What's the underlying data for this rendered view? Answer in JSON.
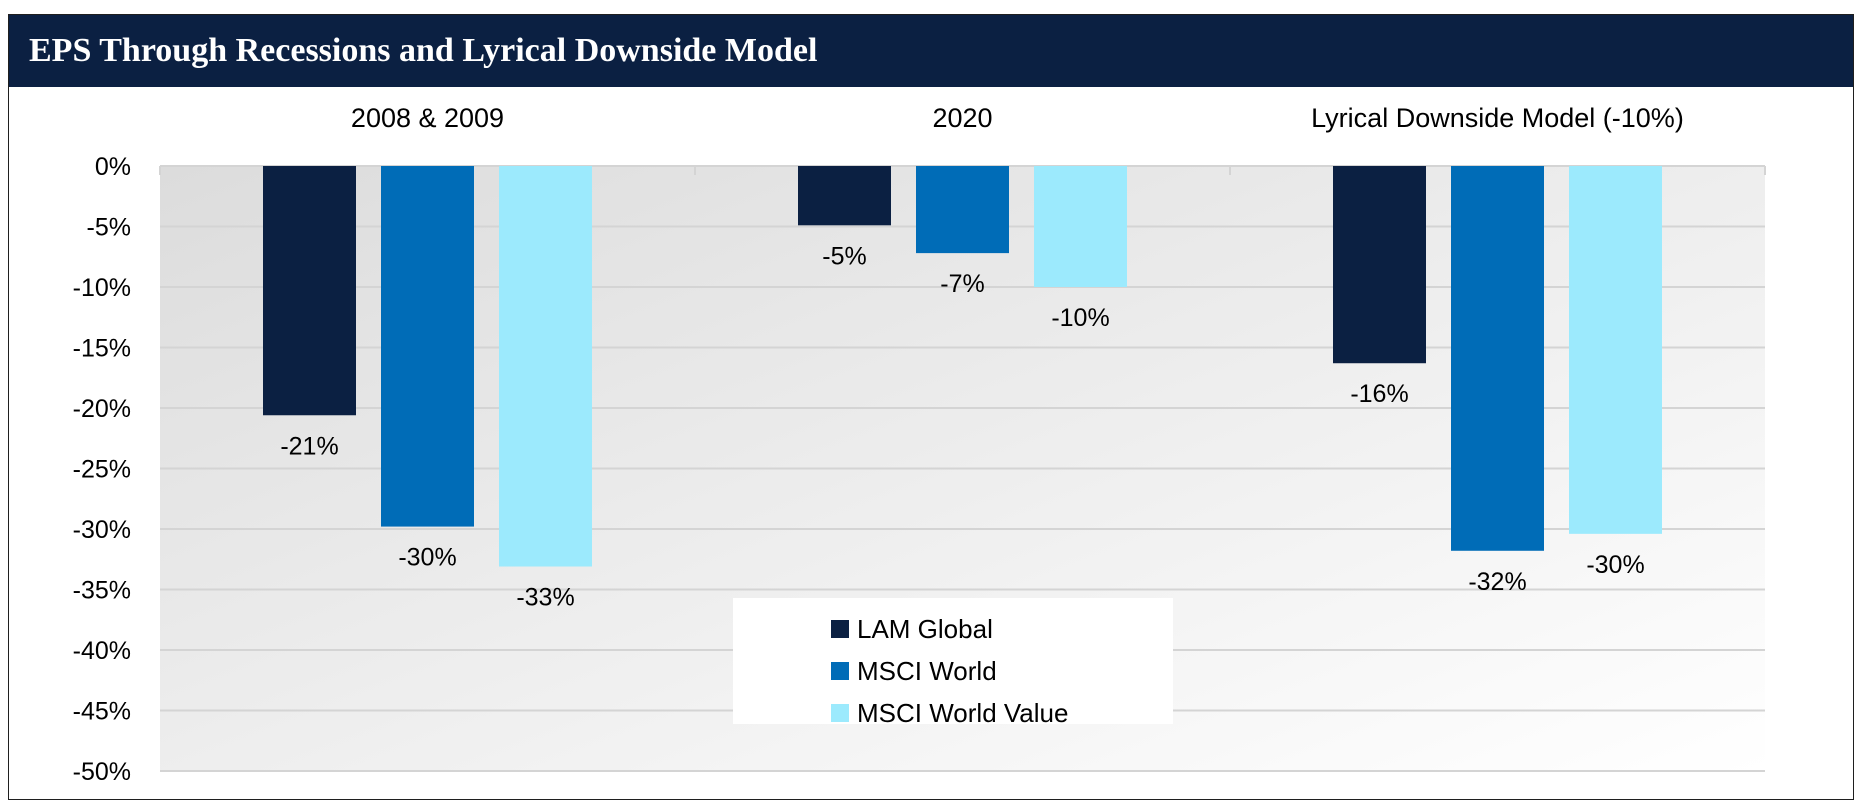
{
  "chart_data": {
    "type": "bar",
    "title": "EPS Through Recessions and Lyrical Downside Model",
    "categories": [
      "2008 & 2009",
      "2020",
      "Lyrical Downside Model (-10%)"
    ],
    "series": [
      {
        "name": "LAM Global",
        "color": "#0b2042",
        "values": [
          -20.6,
          -4.9,
          -16.3
        ],
        "labels": [
          "-21%",
          "-5%",
          "-16%"
        ]
      },
      {
        "name": "MSCI World",
        "color": "#006cb7",
        "values": [
          -29.8,
          -7.2,
          -31.8
        ],
        "labels": [
          "-30%",
          "-7%",
          "-32%"
        ]
      },
      {
        "name": "MSCI World Value",
        "color": "#9ceafd",
        "values": [
          -33.1,
          -10.0,
          -30.4
        ],
        "labels": [
          "-33%",
          "-10%",
          "-30%"
        ]
      }
    ],
    "ylim": [
      -50,
      0
    ],
    "ytick_step": 5,
    "ytick_labels": [
      "0%",
      "-5%",
      "-10%",
      "-15%",
      "-20%",
      "-25%",
      "-30%",
      "-35%",
      "-40%",
      "-45%",
      "-50%"
    ],
    "xlabel": "",
    "ylabel": "",
    "grid": true,
    "legend_position": "bottom-center",
    "category_labels_position": "top"
  },
  "colors": {
    "title_background": "#0b2042",
    "title_text": "#ffffff",
    "gridline": "#d4d4d4",
    "plot_gradient_start": "#dcdcdc",
    "plot_gradient_end": "#ffffff"
  }
}
